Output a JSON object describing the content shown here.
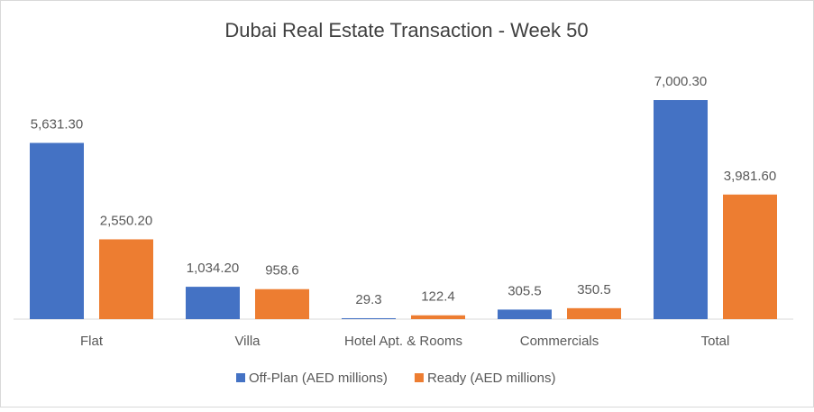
{
  "chart_data": {
    "type": "bar",
    "title": "Dubai Real Estate Transaction - Week 50",
    "categories": [
      "Flat",
      "Villa",
      "Hotel Apt. & Rooms",
      "Commercials",
      "Total"
    ],
    "series": [
      {
        "name": "Off-Plan (AED millions)",
        "color": "#4472c4",
        "values": [
          5631.3,
          1034.2,
          29.3,
          305.5,
          7000.3
        ],
        "value_labels": [
          "5,631.30",
          "1,034.20",
          "29.3",
          "305.5",
          "7,000.30"
        ]
      },
      {
        "name": "Ready (AED millions)",
        "color": "#ed7d31",
        "values": [
          2550.2,
          958.6,
          122.4,
          350.5,
          3981.6
        ],
        "value_labels": [
          "2,550.20",
          "958.6",
          "122.4",
          "350.5",
          "3,981.60"
        ]
      }
    ],
    "legend": "bottom"
  }
}
